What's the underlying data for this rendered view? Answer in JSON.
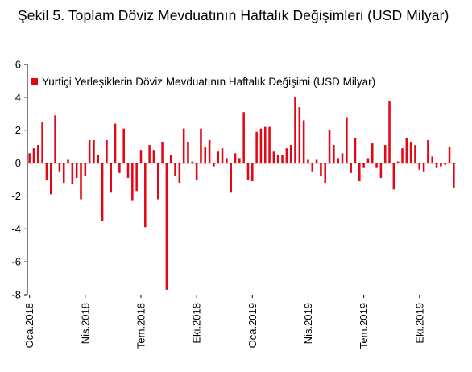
{
  "chart_data": {
    "type": "bar",
    "title": "Şekil 5. Toplam Döviz Mevduatının Haftalık Değişimleri (USD Milyar)",
    "xlabel": "",
    "ylabel": "",
    "ylim": [
      -8,
      6
    ],
    "yticks": [
      "6",
      "4",
      "2",
      "0",
      "-2",
      "-4",
      "-6",
      "-8"
    ],
    "x_tick_labels": [
      "Oca.2018",
      "Nis.2018",
      "Tem.2018",
      "Eki.2018",
      "Oca.2019",
      "Nis.2019",
      "Tem.2019",
      "Eki.2019"
    ],
    "legend_position": "top",
    "grid": false,
    "color": "#E30613",
    "series": [
      {
        "name": "Yurtiçi Yerleşiklerin Döviz Mevduatının Haftalık Değişimi (USD Milyar)",
        "values": [
          0.6,
          0.9,
          1.1,
          2.5,
          -1.0,
          -1.9,
          2.9,
          -0.5,
          -1.2,
          0.2,
          -1.3,
          -0.9,
          -2.2,
          -0.8,
          1.4,
          1.4,
          0.5,
          -3.5,
          1.4,
          -1.8,
          2.4,
          -0.6,
          2.1,
          -0.9,
          -2.3,
          -1.7,
          0.8,
          -3.9,
          1.1,
          0.8,
          -2.2,
          1.3,
          -7.7,
          0.5,
          -0.8,
          -1.2,
          2.1,
          1.3,
          0.1,
          -1.0,
          2.1,
          1.0,
          1.4,
          -0.2,
          0.7,
          0.9,
          0.3,
          -1.8,
          0.6,
          0.3,
          3.1,
          -1.0,
          -1.1,
          1.9,
          2.1,
          2.2,
          2.2,
          0.7,
          0.5,
          0.5,
          0.9,
          1.1,
          4.0,
          3.4,
          2.6,
          0.2,
          -0.5,
          0.2,
          -0.8,
          -1.2,
          2.0,
          1.1,
          0.3,
          0.6,
          2.8,
          -0.6,
          1.5,
          -1.1,
          -0.3,
          0.3,
          1.2,
          -0.3,
          -0.9,
          1.1,
          3.8,
          -1.6,
          0.1,
          0.9,
          1.5,
          1.3,
          1.1,
          -0.4,
          -0.5,
          1.4,
          0.4,
          -0.3,
          -0.2,
          -0.1,
          1.0,
          -1.5
        ]
      }
    ]
  }
}
